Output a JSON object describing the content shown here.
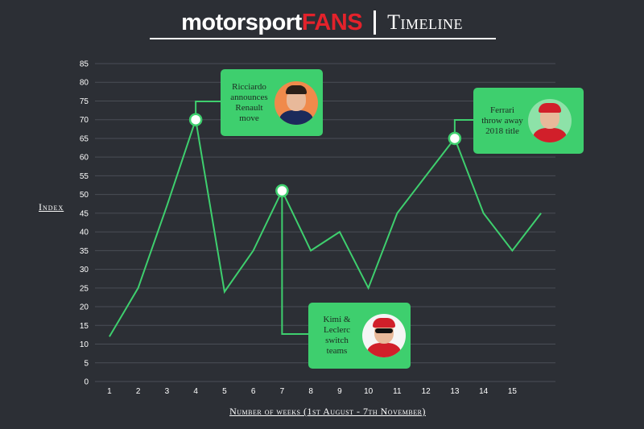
{
  "header": {
    "brand_main": "motorsport",
    "brand_accent": "FANS",
    "subtitle": "Timeline",
    "accent_color": "#e3222b"
  },
  "annotations": [
    {
      "x": 4,
      "y": 70,
      "text": "Ricciardo announces Renault move",
      "avatar": "driver-ricciardo-avatar"
    },
    {
      "x": 7,
      "y": 51,
      "text": "Kimi & Leclerc switch teams",
      "avatar": "driver-raikkonen-avatar"
    },
    {
      "x": 13,
      "y": 65,
      "text": "Ferrari throw away 2018 title",
      "avatar": "driver-vettel-avatar"
    }
  ],
  "chart_data": {
    "type": "line",
    "title": "Timeline",
    "xlabel": "Number of weeks (1st August - 7th November)",
    "ylabel": "Index",
    "x": [
      1,
      1.5,
      2,
      3,
      4,
      5,
      6,
      7,
      8,
      9,
      10,
      11,
      12,
      13,
      14,
      15,
      16
    ],
    "xticks": [
      1,
      2,
      3,
      4,
      5,
      6,
      7,
      8,
      9,
      10,
      11,
      12,
      13,
      14,
      15
    ],
    "xlim": [
      0.5,
      16.5
    ],
    "ylim": [
      0,
      85
    ],
    "yticks": [
      0,
      5,
      10,
      15,
      20,
      25,
      30,
      35,
      40,
      45,
      50,
      55,
      60,
      65,
      70,
      75,
      80,
      85
    ],
    "grid": true,
    "series": [
      {
        "color": "#3ecf6e",
        "values": [
          12,
          18.5,
          25,
          47,
          70,
          24,
          35,
          51,
          35,
          40,
          25,
          45,
          55,
          65,
          45,
          35,
          45
        ]
      }
    ]
  }
}
